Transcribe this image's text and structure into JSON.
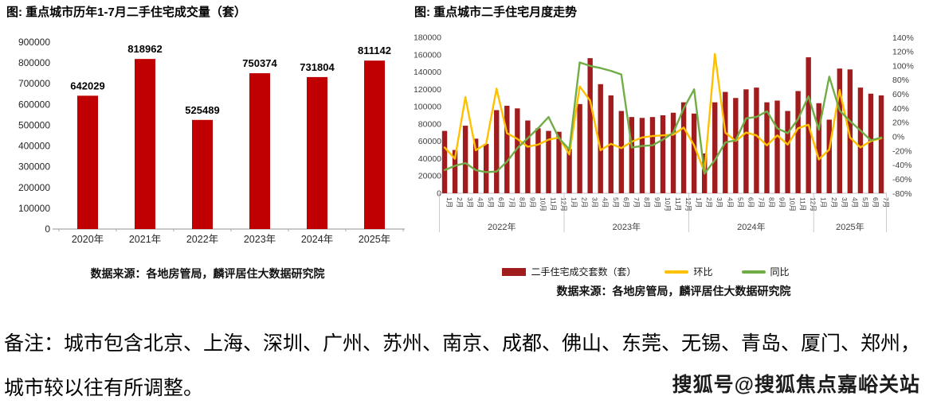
{
  "note": {
    "line1": "备注：城市包含北京、上海、深圳、广州、苏州、南京、成都、佛山、东莞、无锡、青岛、厦门、郑州，",
    "line2": "城市较以往有所调整。"
  },
  "watermark": "搜狐号@搜狐焦点嘉峪关站",
  "colors": {
    "left_bar": "#C00000",
    "right_bar": "#A11D1D",
    "mom_line": "#FFC000",
    "yoy_line": "#70AD47",
    "axis": "#BFBFBF",
    "tick_text": "#404040"
  },
  "chart_data": [
    {
      "type": "bar",
      "title": "图: 重点城市历年1-7月二手住宅成交量（套）",
      "categories": [
        "2020年",
        "2021年",
        "2022年",
        "2023年",
        "2024年",
        "2025年"
      ],
      "values": [
        642029,
        818962,
        525489,
        750374,
        731804,
        811142
      ],
      "xlabel": "",
      "ylabel": "",
      "ylim": [
        0,
        900000
      ],
      "ystep": 100000,
      "grid": false,
      "value_labels": true,
      "bar_color": "#C00000",
      "source": "数据来源：各地房管局，麟评居住大数据研究院"
    },
    {
      "type": "combo",
      "title": "图: 重点城市二手住宅月度走势",
      "years": [
        {
          "label": "2022年",
          "months": 12
        },
        {
          "label": "2023年",
          "months": 12
        },
        {
          "label": "2024年",
          "months": 12
        },
        {
          "label": "2025年",
          "months": 7
        }
      ],
      "month_label_suffix": "月",
      "left_axis": {
        "min": 0,
        "max": 180000,
        "step": 20000
      },
      "right_axis": {
        "min": -80,
        "max": 140,
        "step": 20,
        "suffix": "%"
      },
      "legend_position": "bottom",
      "series": [
        {
          "name": "二手住宅成交套数（套）",
          "type": "bar",
          "axis": "left",
          "color": "#A11D1D",
          "values": [
            72000,
            50000,
            78000,
            63000,
            57000,
            96000,
            101000,
            98000,
            84000,
            75000,
            72000,
            71000,
            51000,
            103000,
            156000,
            126000,
            113000,
            95000,
            88000,
            87000,
            88000,
            90000,
            93000,
            105000,
            92000,
            46000,
            105000,
            117000,
            110000,
            120000,
            122000,
            105000,
            107000,
            95000,
            118000,
            157000,
            104000,
            85000,
            144000,
            143000,
            122000,
            115000,
            113000
          ]
        },
        {
          "name": "环比",
          "type": "line",
          "axis": "right",
          "color": "#FFC000",
          "values": [
            -15,
            -31,
            56,
            -19,
            -10,
            68,
            5,
            -3,
            -14,
            -11,
            -4,
            -1,
            -25,
            71,
            51,
            -19,
            -10,
            -16,
            -7,
            -1,
            1,
            2,
            3,
            13,
            -12,
            -50,
            117,
            6,
            -6,
            6,
            2,
            -12,
            2,
            -11,
            12,
            17,
            -32,
            -18,
            66,
            -1,
            -15,
            -6,
            -2
          ]
        },
        {
          "name": "同比",
          "type": "line",
          "axis": "right",
          "color": "#70AD47",
          "values": [
            -47,
            -41,
            -37,
            -47,
            -50,
            -49,
            -35,
            -16,
            -2,
            12,
            28,
            -2,
            -18,
            105,
            100,
            97,
            93,
            88,
            -15,
            -13,
            -12,
            -4,
            6,
            40,
            67,
            -52,
            -33,
            -8,
            -5,
            26,
            28,
            36,
            12,
            5,
            25,
            57,
            10,
            85,
            37,
            22,
            9,
            -5,
            -1
          ]
        }
      ],
      "source": "数据来源：各地房管局，麟评居住大数据研究院"
    }
  ]
}
